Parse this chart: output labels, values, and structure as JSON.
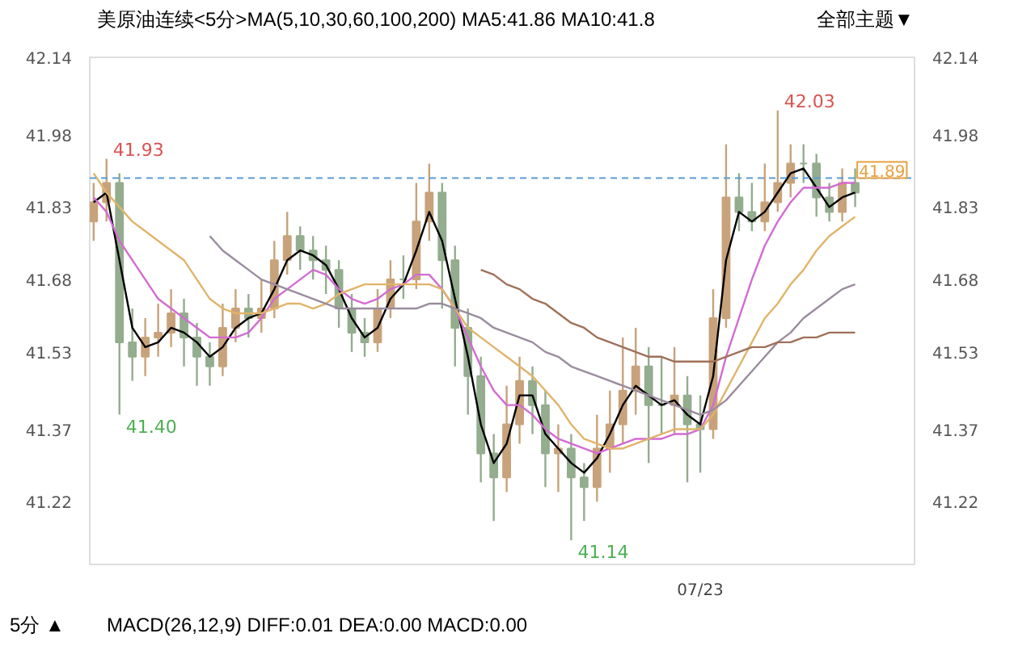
{
  "chart_data": {
    "type": "candlestick",
    "title": "美原油连续",
    "subtitle": "<5分>",
    "categories": [
      null,
      null,
      null,
      null,
      null,
      null,
      null,
      null,
      null,
      null,
      null,
      null,
      null,
      null,
      null,
      null,
      null,
      null,
      null,
      null,
      null,
      null,
      null,
      null,
      null,
      null,
      null,
      null,
      null,
      null,
      null,
      null,
      null,
      null,
      null,
      null,
      null,
      null,
      null,
      null,
      null,
      null,
      null,
      null,
      null,
      null,
      null,
      "07/23",
      null,
      null,
      null,
      null,
      null,
      null,
      null,
      null,
      null,
      null,
      null,
      null
    ],
    "ohlc": [
      [
        41.8,
        41.88,
        41.76,
        41.84
      ],
      [
        41.84,
        41.93,
        41.8,
        41.88
      ],
      [
        41.88,
        41.9,
        41.4,
        41.55
      ],
      [
        41.55,
        41.62,
        41.47,
        41.52
      ],
      [
        41.52,
        41.6,
        41.48,
        41.56
      ],
      [
        41.56,
        41.63,
        41.52,
        41.57
      ],
      [
        41.57,
        41.66,
        41.54,
        41.61
      ],
      [
        41.61,
        41.64,
        41.5,
        41.56
      ],
      [
        41.56,
        41.59,
        41.46,
        41.52
      ],
      [
        41.52,
        41.55,
        41.46,
        41.5
      ],
      [
        41.5,
        41.63,
        41.48,
        41.58
      ],
      [
        41.58,
        41.66,
        41.55,
        41.62
      ],
      [
        41.62,
        41.65,
        41.56,
        41.6
      ],
      [
        41.6,
        41.68,
        41.57,
        41.62
      ],
      [
        41.62,
        41.76,
        41.6,
        41.72
      ],
      [
        41.72,
        41.82,
        41.69,
        41.77
      ],
      [
        41.77,
        41.79,
        41.7,
        41.74
      ],
      [
        41.74,
        41.77,
        41.68,
        41.72
      ],
      [
        41.72,
        41.75,
        41.65,
        41.7
      ],
      [
        41.7,
        41.72,
        41.58,
        41.62
      ],
      [
        41.62,
        41.65,
        41.53,
        41.57
      ],
      [
        41.57,
        41.6,
        41.52,
        41.55
      ],
      [
        41.55,
        41.66,
        41.53,
        41.62
      ],
      [
        41.62,
        41.72,
        41.6,
        41.68
      ],
      [
        41.68,
        41.73,
        41.64,
        41.68
      ],
      [
        41.68,
        41.88,
        41.66,
        41.8
      ],
      [
        41.8,
        41.92,
        41.76,
        41.86
      ],
      [
        41.86,
        41.88,
        41.62,
        41.72
      ],
      [
        41.72,
        41.75,
        41.5,
        41.58
      ],
      [
        41.58,
        41.62,
        41.4,
        41.48
      ],
      [
        41.48,
        41.52,
        41.26,
        41.32
      ],
      [
        41.32,
        41.36,
        41.18,
        41.27
      ],
      [
        41.27,
        41.46,
        41.24,
        41.38
      ],
      [
        41.38,
        41.52,
        41.34,
        41.47
      ],
      [
        41.47,
        41.5,
        41.36,
        41.42
      ],
      [
        41.42,
        41.45,
        41.25,
        41.32
      ],
      [
        41.32,
        41.38,
        41.24,
        41.33
      ],
      [
        41.33,
        41.36,
        41.14,
        41.27
      ],
      [
        41.27,
        41.3,
        41.18,
        41.25
      ],
      [
        41.25,
        41.4,
        41.22,
        41.33
      ],
      [
        41.33,
        41.45,
        41.28,
        41.38
      ],
      [
        41.38,
        41.56,
        41.34,
        41.45
      ],
      [
        41.45,
        41.58,
        41.4,
        41.5
      ],
      [
        41.5,
        41.54,
        41.3,
        41.42
      ],
      [
        41.42,
        41.52,
        41.36,
        41.42
      ],
      [
        41.42,
        41.54,
        41.36,
        41.44
      ],
      [
        41.44,
        41.48,
        41.26,
        41.38
      ],
      [
        41.38,
        41.44,
        41.28,
        41.37
      ],
      [
        41.37,
        41.66,
        41.35,
        41.6
      ],
      [
        41.6,
        41.96,
        41.58,
        41.85
      ],
      [
        41.85,
        41.9,
        41.78,
        41.82
      ],
      [
        41.82,
        41.88,
        41.78,
        41.8
      ],
      [
        41.8,
        41.92,
        41.78,
        41.84
      ],
      [
        41.84,
        42.03,
        41.82,
        41.88
      ],
      [
        41.88,
        41.96,
        41.85,
        41.92
      ],
      [
        41.92,
        41.96,
        41.88,
        41.92
      ],
      [
        41.92,
        41.94,
        41.81,
        41.85
      ],
      [
        41.85,
        41.88,
        41.8,
        41.82
      ],
      [
        41.82,
        41.91,
        41.8,
        41.88
      ],
      [
        41.88,
        41.91,
        41.83,
        41.86
      ]
    ],
    "colors": [
      "#c8a27a",
      "#c8a27a",
      "#93ad8e",
      "#93ad8e",
      "#c8a27a",
      "#c8a27a",
      "#c8a27a",
      "#93ad8e",
      "#93ad8e",
      "#93ad8e",
      "#c8a27a",
      "#c8a27a",
      "#93ad8e",
      "#c8a27a",
      "#c8a27a",
      "#c8a27a",
      "#93ad8e",
      "#93ad8e",
      "#93ad8e",
      "#93ad8e",
      "#93ad8e",
      "#93ad8e",
      "#c8a27a",
      "#c8a27a",
      "#93ad8e",
      "#c8a27a",
      "#c8a27a",
      "#93ad8e",
      "#93ad8e",
      "#93ad8e",
      "#93ad8e",
      "#93ad8e",
      "#c8a27a",
      "#c8a27a",
      "#93ad8e",
      "#93ad8e",
      "#c8a27a",
      "#93ad8e",
      "#93ad8e",
      "#c8a27a",
      "#c8a27a",
      "#c8a27a",
      "#c8a27a",
      "#93ad8e",
      "#93ad8e",
      "#c8a27a",
      "#93ad8e",
      "#93ad8e",
      "#c8a27a",
      "#c8a27a",
      "#93ad8e",
      "#93ad8e",
      "#c8a27a",
      "#c8a27a",
      "#c8a27a",
      "#93ad8e",
      "#93ad8e",
      "#93ad8e",
      "#c8a27a",
      "#93ad8e"
    ],
    "series": [
      {
        "type": "line",
        "color": "#000000",
        "values": [
          41.84,
          41.86,
          41.72,
          41.58,
          41.54,
          41.55,
          41.58,
          41.57,
          41.55,
          41.52,
          41.54,
          41.58,
          41.6,
          41.61,
          41.66,
          41.72,
          41.74,
          41.73,
          41.71,
          41.66,
          41.6,
          41.56,
          41.58,
          41.64,
          41.67,
          41.74,
          41.82,
          41.76,
          41.64,
          41.52,
          41.38,
          41.3,
          41.34,
          41.44,
          41.44,
          41.36,
          41.33,
          41.3,
          41.28,
          41.31,
          41.36,
          41.42,
          41.46,
          41.44,
          41.42,
          41.43,
          41.4,
          41.38,
          41.48,
          41.72,
          41.82,
          41.8,
          41.82,
          41.86,
          41.9,
          41.91,
          41.87,
          41.83,
          41.85,
          41.86
        ]
      },
      {
        "type": "line",
        "color": "#d36bd3",
        "values": [
          41.85,
          41.82,
          41.76,
          41.72,
          41.68,
          41.64,
          41.62,
          41.6,
          41.58,
          41.56,
          41.56,
          41.56,
          41.57,
          41.6,
          41.64,
          41.66,
          41.68,
          41.7,
          41.69,
          41.66,
          41.64,
          41.63,
          41.64,
          41.66,
          41.67,
          41.69,
          41.69,
          41.66,
          41.62,
          41.56,
          41.5,
          41.45,
          41.42,
          41.42,
          41.4,
          41.37,
          41.35,
          41.34,
          41.33,
          41.32,
          41.33,
          41.34,
          41.35,
          41.35,
          41.35,
          41.36,
          41.36,
          41.37,
          41.42,
          41.52,
          41.6,
          41.68,
          41.75,
          41.8,
          41.84,
          41.87,
          41.87,
          41.87,
          41.88,
          41.88
        ]
      },
      {
        "type": "line",
        "color": "#e0b46a",
        "values": [
          41.9,
          41.86,
          41.83,
          41.8,
          41.78,
          41.76,
          41.74,
          41.72,
          41.68,
          41.64,
          41.62,
          41.61,
          41.61,
          41.61,
          41.62,
          41.63,
          41.63,
          41.62,
          41.63,
          41.65,
          41.66,
          41.67,
          41.67,
          41.67,
          41.67,
          41.67,
          41.67,
          41.66,
          41.62,
          41.58,
          41.56,
          41.54,
          41.52,
          41.5,
          41.48,
          41.45,
          41.42,
          41.38,
          41.35,
          41.34,
          41.33,
          41.33,
          41.34,
          41.35,
          41.36,
          41.37,
          41.37,
          41.37,
          41.4,
          41.45,
          41.5,
          41.55,
          41.6,
          41.63,
          41.67,
          41.7,
          41.74,
          41.77,
          41.79,
          41.81
        ]
      },
      {
        "type": "line",
        "color": "#9a8c9e",
        "values": [
          null,
          null,
          null,
          null,
          null,
          null,
          null,
          null,
          null,
          41.77,
          41.74,
          41.72,
          41.7,
          41.68,
          41.67,
          41.66,
          41.65,
          41.64,
          41.63,
          41.62,
          41.62,
          41.62,
          41.62,
          41.62,
          41.62,
          41.62,
          41.63,
          41.63,
          41.62,
          41.61,
          41.6,
          41.58,
          41.57,
          41.56,
          41.55,
          41.53,
          41.52,
          41.5,
          41.49,
          41.48,
          41.47,
          41.46,
          41.45,
          41.44,
          41.43,
          41.42,
          41.41,
          41.4,
          41.41,
          41.43,
          41.46,
          41.49,
          41.52,
          41.55,
          41.57,
          41.6,
          41.62,
          41.64,
          41.66,
          41.67
        ]
      },
      {
        "type": "line",
        "color": "#a0705a",
        "values": [
          null,
          null,
          null,
          null,
          null,
          null,
          null,
          null,
          null,
          null,
          null,
          null,
          null,
          null,
          null,
          null,
          null,
          null,
          null,
          null,
          null,
          null,
          null,
          null,
          null,
          null,
          null,
          null,
          null,
          null,
          41.7,
          41.69,
          41.67,
          41.66,
          41.64,
          41.63,
          41.61,
          41.59,
          41.58,
          41.56,
          41.55,
          41.54,
          41.53,
          41.52,
          41.52,
          41.51,
          41.51,
          41.51,
          41.51,
          41.52,
          41.53,
          41.54,
          41.54,
          41.55,
          41.55,
          41.56,
          41.56,
          41.57,
          41.57,
          41.57
        ]
      }
    ],
    "ylim": [
      41.09,
      42.14
    ],
    "yticks": [
      41.22,
      41.37,
      41.53,
      41.68,
      41.83,
      41.98,
      42.14
    ],
    "y2lim": [
      41.09,
      42.14
    ],
    "y2ticks": [
      41.22,
      41.37,
      41.53,
      41.68,
      41.83,
      41.98,
      42.14
    ],
    "ref_lines": [
      {
        "axis": "y",
        "value": 41.89,
        "label": "41.89",
        "color": "#5b9bd5",
        "line_style": "dashed"
      }
    ],
    "annotations": [
      "41.93",
      "41.40",
      "41.14",
      "42.03",
      "MA(5,10,30,60,100,200) MA5:41.86 MA10:41.8",
      "全部主题▼",
      "5分 ▲",
      "MACD(26,12,9) DIFF:0.01 DEA:0.00 MACD:0.00"
    ],
    "grid": false
  }
}
